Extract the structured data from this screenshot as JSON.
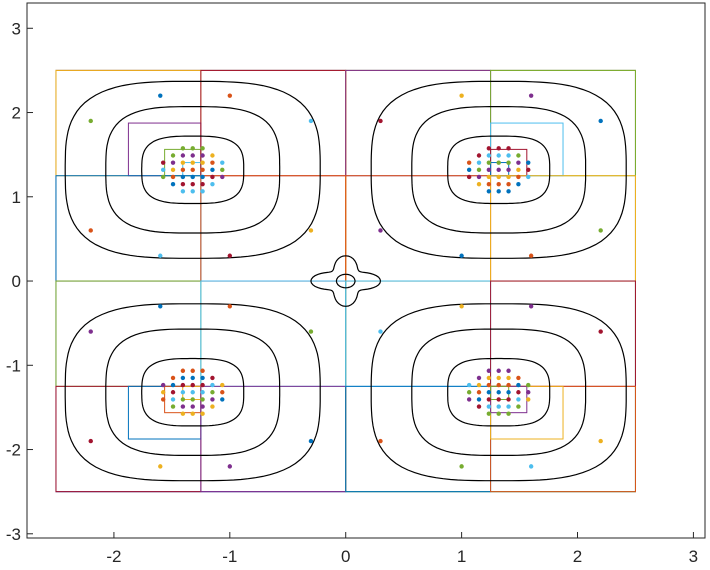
{
  "chart_data": {
    "type": "contour",
    "title": "",
    "xlabel": "",
    "ylabel": "",
    "xlim": [
      -2.75,
      3.1
    ],
    "ylim": [
      -3.05,
      3.3
    ],
    "x_ticks": [
      -2,
      -1,
      0,
      1,
      2,
      3
    ],
    "y_ticks": [
      -3,
      -2,
      -1,
      0,
      1,
      2,
      3
    ],
    "grid": false,
    "legend": "none",
    "colors": {
      "contour": "#000000",
      "axes": "#262626",
      "palette": [
        "#0072bd",
        "#d95319",
        "#edb120",
        "#7e2f8e",
        "#77ac30",
        "#4dbeee",
        "#a2142f"
      ]
    },
    "contour_levels": [
      {
        "name": "innermost-level",
        "rx": 0.44,
        "ry": 0.4
      },
      {
        "name": "middle-level",
        "rx": 0.75,
        "ry": 0.75
      },
      {
        "name": "outer-level",
        "rx": 1.1,
        "ry": 1.05
      }
    ],
    "wells": [
      {
        "name": "upper-left",
        "cx": -1.32,
        "cy": 1.32
      },
      {
        "name": "upper-right",
        "cx": 1.32,
        "cy": 1.32
      },
      {
        "name": "lower-left",
        "cx": -1.32,
        "cy": -1.32
      },
      {
        "name": "lower-right",
        "cx": 1.32,
        "cy": -1.32
      }
    ],
    "subdivision": {
      "domain": [
        -2.5,
        2.5,
        -2.5,
        2.5
      ],
      "depth": 5,
      "point_samples": [
        [
          -1.6,
          2.2
        ],
        [
          -1.0,
          2.2
        ],
        [
          1.0,
          2.2
        ],
        [
          1.6,
          2.2
        ],
        [
          -2.2,
          1.9
        ],
        [
          -0.3,
          1.9
        ],
        [
          0.3,
          1.9
        ],
        [
          2.2,
          1.9
        ],
        [
          -2.2,
          0.6
        ],
        [
          -0.3,
          0.6
        ],
        [
          0.3,
          0.6
        ],
        [
          2.2,
          0.6
        ],
        [
          -1.6,
          0.3
        ],
        [
          -1.0,
          0.3
        ],
        [
          1.0,
          0.3
        ],
        [
          1.6,
          0.3
        ],
        [
          -1.6,
          -2.2
        ],
        [
          -1.0,
          -2.2
        ],
        [
          1.0,
          -2.2
        ],
        [
          1.6,
          -2.2
        ],
        [
          -2.2,
          -1.9
        ],
        [
          -0.3,
          -1.9
        ],
        [
          0.3,
          -1.9
        ],
        [
          2.2,
          -1.9
        ],
        [
          -2.2,
          -0.6
        ],
        [
          -0.3,
          -0.6
        ],
        [
          0.3,
          -0.6
        ],
        [
          2.2,
          -0.6
        ],
        [
          -1.6,
          -0.3
        ],
        [
          -1.0,
          -0.3
        ],
        [
          1.0,
          -0.3
        ],
        [
          1.6,
          -0.3
        ]
      ]
    }
  }
}
